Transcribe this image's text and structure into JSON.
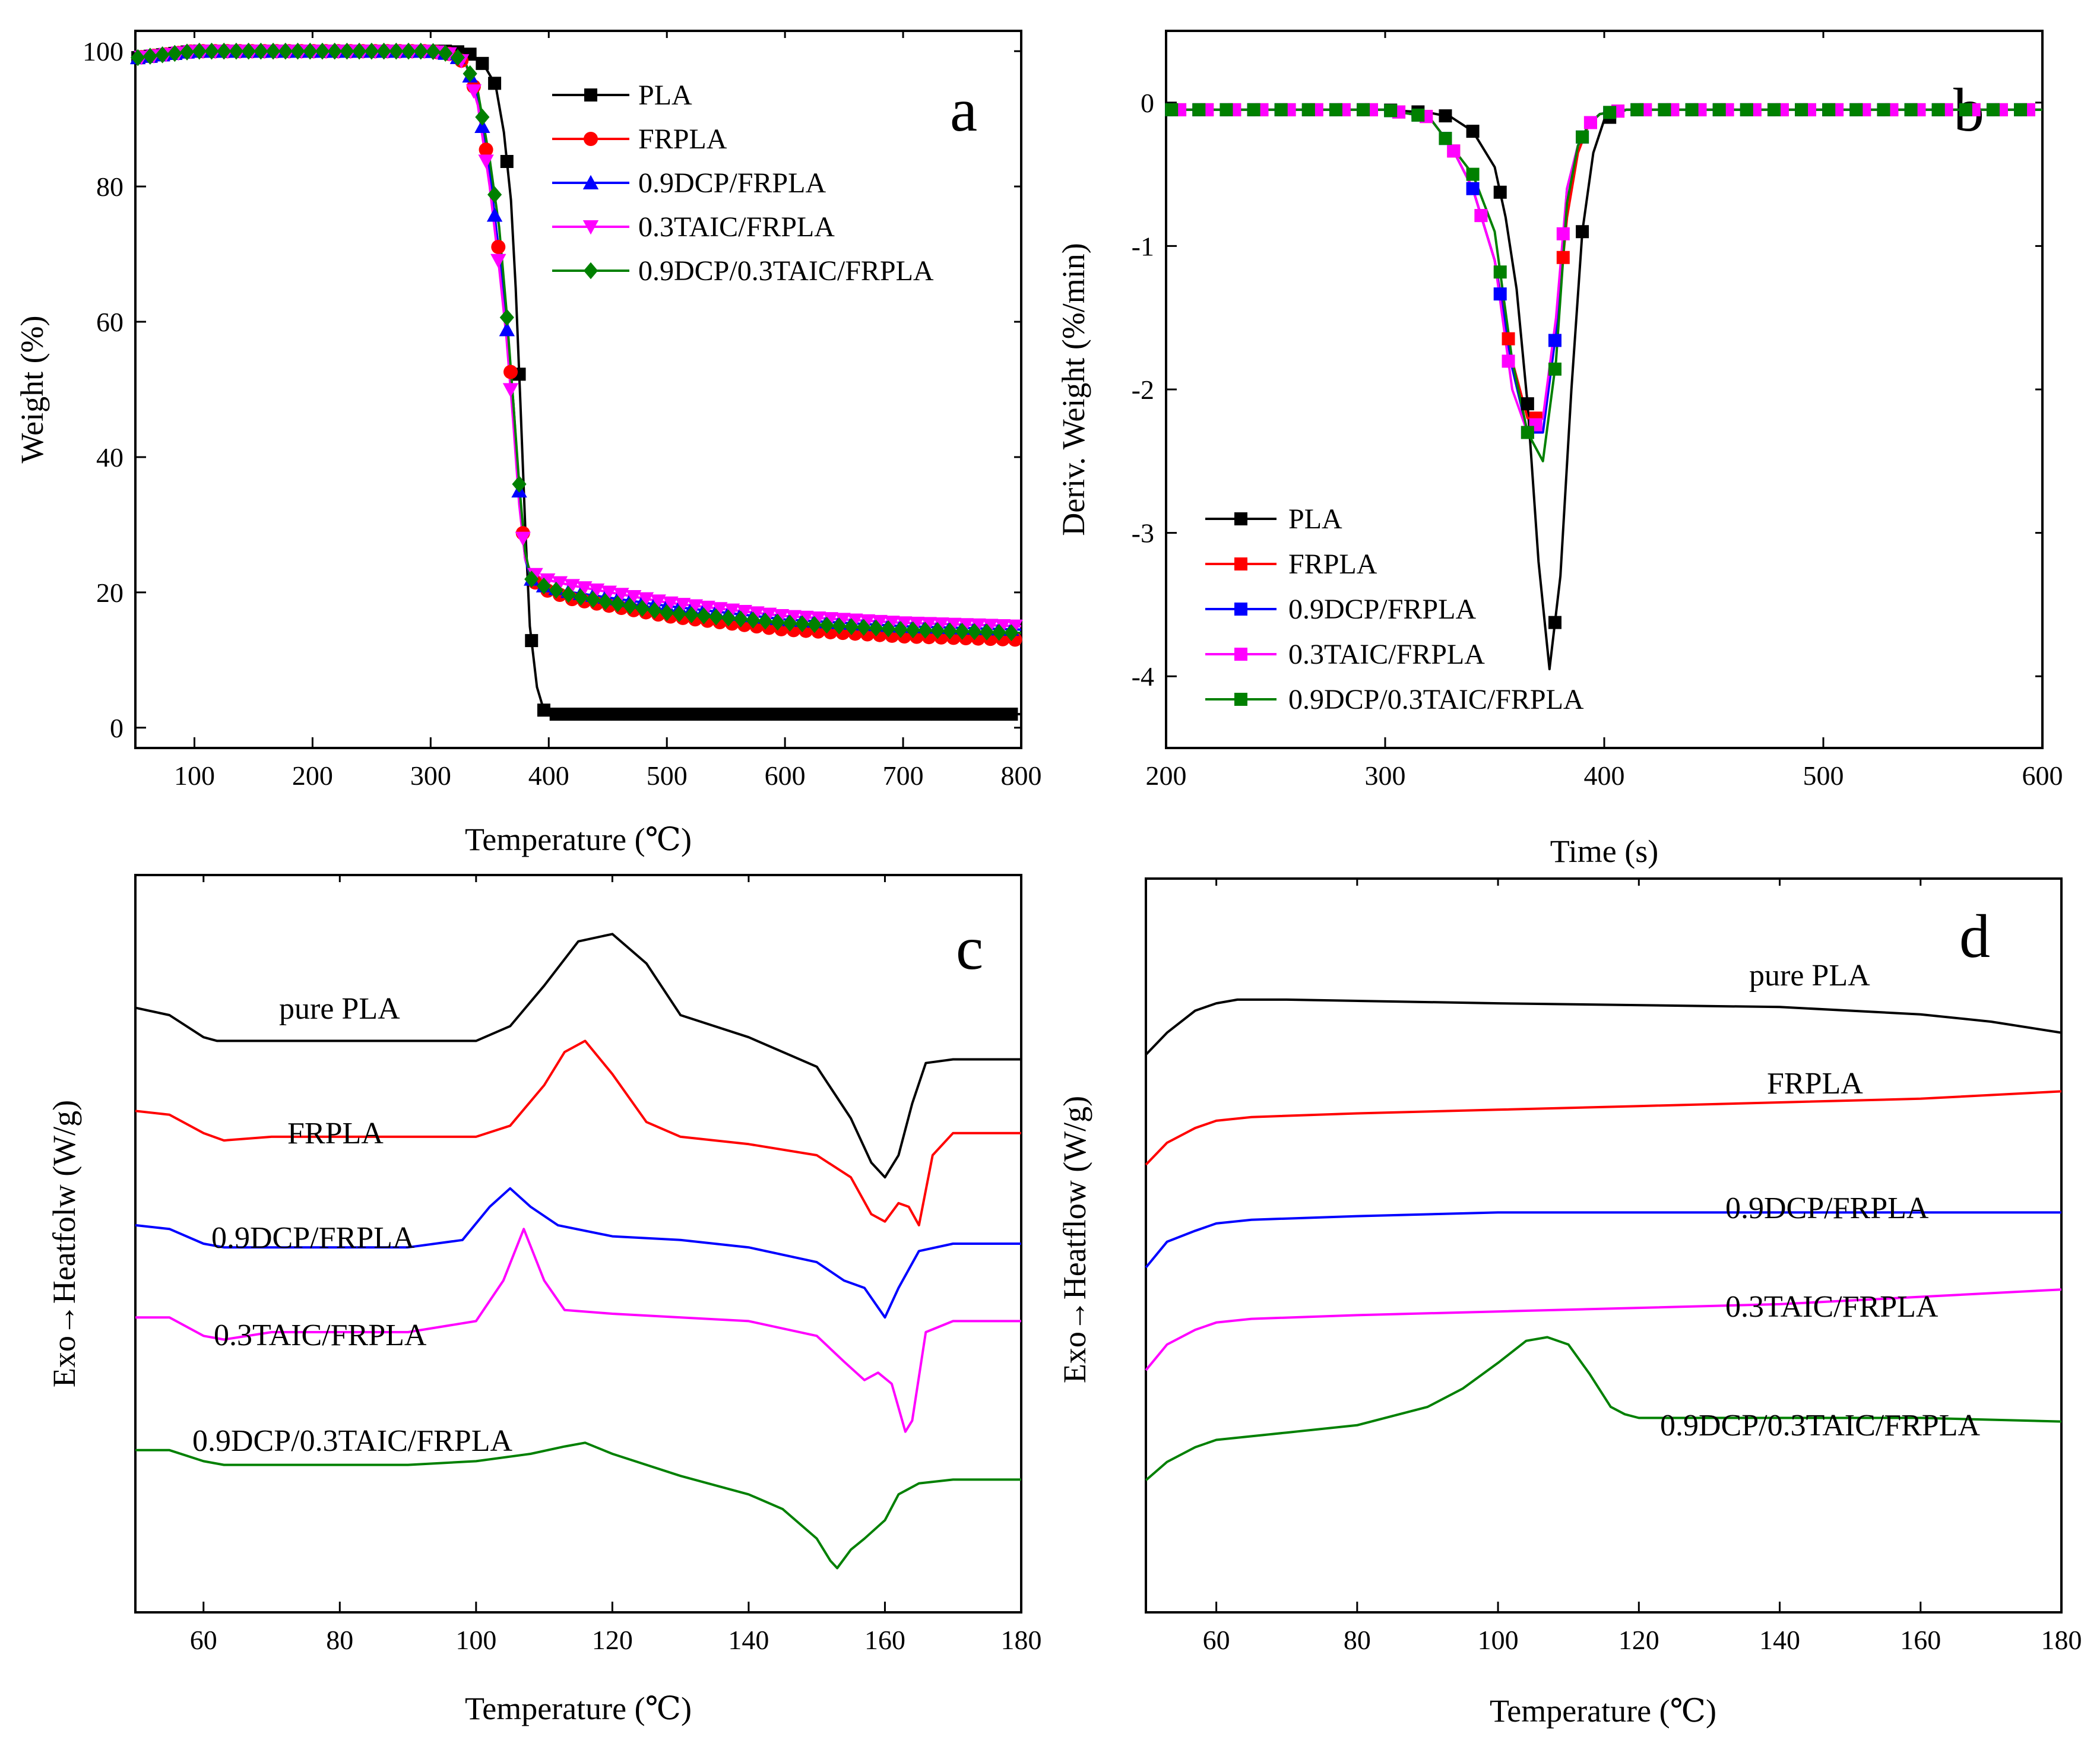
{
  "colors": {
    "PLA": "#000000",
    "FRPLA": "#ff0000",
    "0.9DCP/FRPLA": "#0000ff",
    "0.3TAIC/FRPLA": "#ff00ff",
    "0.9DCP/0.3TAIC/FRPLA": "#008000"
  },
  "chart_data": [
    {
      "panel": "a",
      "type": "line",
      "xlabel": "Temperature (℃)",
      "ylabel": "Weight (%)",
      "xlim": [
        50,
        800
      ],
      "ylim": [
        -3,
        103
      ],
      "xticks": [
        100,
        200,
        300,
        400,
        500,
        600,
        700,
        800
      ],
      "yticks": [
        0,
        20,
        40,
        60,
        80,
        100
      ],
      "legend_position": "top-right",
      "series": [
        {
          "name": "PLA",
          "color": "#000000",
          "marker": "square",
          "x": [
            50,
            100,
            200,
            300,
            320,
            335,
            345,
            355,
            362,
            368,
            372,
            376,
            380,
            384,
            390,
            396,
            402,
            410,
            500,
            600,
            700,
            800
          ],
          "y": [
            99,
            100,
            100,
            100,
            100,
            99.5,
            98,
            95,
            88,
            78,
            65,
            48,
            30,
            15,
            6,
            2.5,
            2,
            2,
            2,
            2,
            2,
            2
          ]
        },
        {
          "name": "FRPLA",
          "color": "#ff0000",
          "marker": "circle",
          "x": [
            50,
            100,
            200,
            300,
            320,
            330,
            340,
            350,
            358,
            364,
            370,
            375,
            380,
            385,
            395,
            420,
            500,
            600,
            700,
            800
          ],
          "y": [
            99,
            100,
            100,
            100,
            99.5,
            98,
            93,
            82,
            70,
            60,
            48,
            35,
            25,
            22,
            20.5,
            19,
            16.5,
            14.5,
            13.5,
            13
          ]
        },
        {
          "name": "0.9DCP/FRPLA",
          "color": "#0000ff",
          "marker": "triangle-up",
          "x": [
            50,
            100,
            200,
            300,
            320,
            330,
            340,
            350,
            358,
            364,
            370,
            375,
            380,
            385,
            395,
            420,
            500,
            600,
            700,
            800
          ],
          "y": [
            99,
            100,
            100,
            100,
            99.5,
            98,
            93,
            82,
            70,
            60,
            48,
            35,
            25,
            22,
            21,
            20,
            18,
            16,
            15,
            14.5
          ]
        },
        {
          "name": "0.3TAIC/FRPLA",
          "color": "#ff00ff",
          "marker": "triangle-down",
          "x": [
            50,
            100,
            200,
            300,
            320,
            330,
            340,
            350,
            358,
            364,
            370,
            375,
            380,
            385,
            395,
            420,
            500,
            600,
            700,
            800
          ],
          "y": [
            99,
            100,
            100,
            100,
            99.5,
            98,
            92,
            80,
            68,
            58,
            45,
            33,
            25,
            23,
            22,
            21,
            18.5,
            16.5,
            15.5,
            15
          ]
        },
        {
          "name": "0.9DCP/0.3TAIC/FRPLA",
          "color": "#008000",
          "marker": "diamond",
          "x": [
            50,
            100,
            200,
            300,
            320,
            330,
            340,
            350,
            358,
            364,
            370,
            375,
            380,
            385,
            395,
            420,
            500,
            600,
            700,
            800
          ],
          "y": [
            99,
            100,
            100,
            100,
            99.5,
            98,
            94,
            84,
            74,
            62,
            48,
            36,
            26,
            22,
            21,
            19.5,
            17,
            15.5,
            14.5,
            14
          ]
        }
      ]
    },
    {
      "panel": "b",
      "type": "line",
      "xlabel": "Time (s)",
      "ylabel": "Deriv. Weight (%/min)",
      "xlim": [
        200,
        600
      ],
      "ylim": [
        -4.5,
        0.5
      ],
      "xticks": [
        200,
        300,
        400,
        500,
        600
      ],
      "yticks": [
        0,
        -1,
        -2,
        -3,
        -4
      ],
      "legend_position": "bottom-left",
      "series": [
        {
          "name": "PLA",
          "color": "#000000",
          "x": [
            200,
            300,
            320,
            330,
            340,
            350,
            355,
            360,
            365,
            370,
            375,
            380,
            385,
            390,
            395,
            400,
            410,
            500,
            600
          ],
          "y": [
            -0.05,
            -0.05,
            -0.07,
            -0.1,
            -0.2,
            -0.45,
            -0.8,
            -1.3,
            -2.1,
            -3.2,
            -3.95,
            -3.3,
            -2.0,
            -0.9,
            -0.35,
            -0.12,
            -0.05,
            -0.05,
            -0.05
          ]
        },
        {
          "name": "FRPLA",
          "color": "#ff0000",
          "x": [
            200,
            300,
            320,
            330,
            340,
            350,
            358,
            365,
            372,
            378,
            383,
            388,
            393,
            398,
            410,
            500,
            600
          ],
          "y": [
            -0.05,
            -0.05,
            -0.1,
            -0.3,
            -0.6,
            -1.1,
            -1.8,
            -2.2,
            -2.2,
            -1.6,
            -0.8,
            -0.35,
            -0.15,
            -0.08,
            -0.05,
            -0.05,
            -0.05
          ]
        },
        {
          "name": "0.9DCP/FRPLA",
          "color": "#0000ff",
          "x": [
            200,
            300,
            320,
            330,
            340,
            350,
            358,
            365,
            372,
            378,
            383,
            388,
            393,
            398,
            410,
            500,
            600
          ],
          "y": [
            -0.05,
            -0.05,
            -0.1,
            -0.3,
            -0.6,
            -1.1,
            -1.85,
            -2.3,
            -2.3,
            -1.6,
            -0.6,
            -0.3,
            -0.15,
            -0.08,
            -0.05,
            -0.05,
            -0.05
          ]
        },
        {
          "name": "0.3TAIC/FRPLA",
          "color": "#ff00ff",
          "x": [
            200,
            300,
            320,
            330,
            340,
            350,
            358,
            365,
            372,
            378,
            383,
            388,
            393,
            398,
            410,
            500,
            600
          ],
          "y": [
            -0.05,
            -0.05,
            -0.1,
            -0.3,
            -0.6,
            -1.1,
            -2.0,
            -2.3,
            -2.2,
            -1.5,
            -0.6,
            -0.3,
            -0.15,
            -0.08,
            -0.05,
            -0.05,
            -0.05
          ]
        },
        {
          "name": "0.9DCP/0.3TAIC/FRPLA",
          "color": "#008000",
          "x": [
            200,
            300,
            320,
            330,
            340,
            350,
            358,
            365,
            372,
            378,
            383,
            388,
            393,
            398,
            410,
            500,
            600
          ],
          "y": [
            -0.05,
            -0.05,
            -0.1,
            -0.3,
            -0.5,
            -0.9,
            -1.8,
            -2.3,
            -2.5,
            -1.8,
            -0.7,
            -0.3,
            -0.15,
            -0.08,
            -0.05,
            -0.05,
            -0.05
          ]
        }
      ]
    },
    {
      "panel": "c",
      "type": "line",
      "xlabel": "Temperature (℃)",
      "ylabel": "Exo→Heatfolw (W/g)",
      "xlim": [
        50,
        180
      ],
      "ylim": [
        0,
        100
      ],
      "xticks": [
        60,
        80,
        100,
        120,
        140,
        160,
        180
      ],
      "yticks": [],
      "series": [
        {
          "name": "pure PLA",
          "color": "#000000",
          "x": [
            50,
            55,
            60,
            62,
            70,
            80,
            90,
            100,
            105,
            110,
            115,
            120,
            125,
            130,
            140,
            150,
            155,
            158,
            160,
            162,
            164,
            166,
            170,
            180
          ],
          "y": [
            82,
            81,
            78,
            77.5,
            77.5,
            77.5,
            77.5,
            77.5,
            79.5,
            85,
            91,
            92,
            88,
            81,
            78,
            74,
            67,
            61,
            59,
            62,
            69,
            74.5,
            75,
            75
          ]
        },
        {
          "name": "FRPLA",
          "color": "#ff0000",
          "x": [
            50,
            55,
            60,
            63,
            70,
            80,
            90,
            100,
            105,
            110,
            113,
            116,
            120,
            125,
            130,
            140,
            150,
            155,
            158,
            160,
            162,
            163.5,
            165,
            167,
            170,
            180
          ],
          "y": [
            68,
            67.5,
            65,
            64,
            64.5,
            64.5,
            64.5,
            64.5,
            66,
            71.5,
            76,
            77.5,
            73,
            66.5,
            64.5,
            63.5,
            62,
            59,
            54,
            53,
            55.5,
            55,
            52.5,
            62,
            65,
            65
          ]
        },
        {
          "name": "0.9DCP/FRPLA",
          "color": "#0000ff",
          "x": [
            50,
            55,
            60,
            63,
            70,
            80,
            90,
            98,
            102,
            105,
            108,
            112,
            120,
            130,
            140,
            150,
            154,
            157,
            160,
            162,
            165,
            170,
            180
          ],
          "y": [
            52.5,
            52,
            50,
            49.5,
            49.5,
            49.5,
            49.5,
            50.5,
            55,
            57.5,
            55,
            52.5,
            51,
            50.5,
            49.5,
            47.5,
            45,
            44,
            40,
            44,
            49,
            50,
            50
          ]
        },
        {
          "name": "0.3TAIC/FRPLA",
          "color": "#ff00ff",
          "x": [
            50,
            55,
            60,
            63,
            70,
            80,
            90,
            100,
            104,
            107,
            110,
            113,
            120,
            130,
            140,
            150,
            154,
            157,
            159,
            161,
            163,
            164,
            166,
            170,
            180
          ],
          "y": [
            40,
            40,
            37.5,
            37,
            38,
            38,
            38,
            39.5,
            45,
            52,
            45,
            41,
            40.5,
            40,
            39.5,
            37.5,
            34,
            31.5,
            32.5,
            31,
            24.5,
            26,
            38,
            39.5,
            39.5
          ]
        },
        {
          "name": "0.9DCP/0.3TAIC/FRPLA",
          "color": "#008000",
          "x": [
            50,
            55,
            60,
            63,
            70,
            80,
            90,
            100,
            108,
            113,
            116,
            120,
            130,
            140,
            145,
            150,
            152,
            153,
            155,
            157,
            160,
            162,
            165,
            170,
            180
          ],
          "y": [
            22,
            22,
            20.5,
            20,
            20,
            20,
            20,
            20.5,
            21.5,
            22.5,
            23,
            21.5,
            18.5,
            16,
            14,
            10,
            7,
            6,
            8.5,
            10,
            12.5,
            16,
            17.5,
            18,
            18
          ]
        }
      ]
    },
    {
      "panel": "d",
      "type": "line",
      "xlabel": "Temperature (℃)",
      "ylabel": "Exo→Heatflow (W/g)",
      "xlim": [
        50,
        180
      ],
      "ylim": [
        0,
        100
      ],
      "xticks": [
        60,
        80,
        100,
        120,
        140,
        160,
        180
      ],
      "yticks": [],
      "series": [
        {
          "name": "pure PLA",
          "color": "#000000",
          "x": [
            50,
            53,
            57,
            60,
            63,
            70,
            100,
            140,
            160,
            170,
            180
          ],
          "y": [
            76,
            79,
            82,
            83,
            83.5,
            83.5,
            83,
            82.5,
            81.5,
            80.5,
            79
          ]
        },
        {
          "name": "FRPLA",
          "color": "#ff0000",
          "x": [
            50,
            53,
            57,
            60,
            65,
            80,
            100,
            120,
            140,
            160,
            180
          ],
          "y": [
            61,
            64,
            66,
            67,
            67.5,
            68,
            68.5,
            69,
            69.5,
            70,
            71
          ]
        },
        {
          "name": "0.9DCP/FRPLA",
          "color": "#0000ff",
          "x": [
            50,
            53,
            57,
            60,
            65,
            80,
            100,
            120,
            140,
            160,
            180
          ],
          "y": [
            47,
            50.5,
            52,
            53,
            53.5,
            54,
            54.5,
            54.5,
            54.5,
            54.5,
            54.5
          ]
        },
        {
          "name": "0.3TAIC/FRPLA",
          "color": "#ff00ff",
          "x": [
            50,
            53,
            57,
            60,
            65,
            80,
            100,
            120,
            140,
            160,
            180
          ],
          "y": [
            33,
            36.5,
            38.5,
            39.5,
            40,
            40.5,
            41,
            41.5,
            42,
            43,
            44
          ]
        },
        {
          "name": "0.9DCP/0.3TAIC/FRPLA",
          "color": "#008000",
          "x": [
            50,
            53,
            57,
            60,
            70,
            80,
            90,
            95,
            100,
            104,
            107,
            110,
            113,
            116,
            118,
            120,
            130,
            140,
            150,
            160,
            180
          ],
          "y": [
            18,
            20.5,
            22.5,
            23.5,
            24.5,
            25.5,
            28,
            30.5,
            34,
            37,
            37.5,
            36.5,
            32.5,
            28,
            27,
            26.5,
            26.5,
            26.5,
            26.5,
            26.5,
            26
          ]
        }
      ]
    }
  ],
  "panels": {
    "a": {
      "letter": "a",
      "xlabel": "Temperature (℃)",
      "ylabel": "Weight (%)"
    },
    "b": {
      "letter": "b",
      "xlabel": "Time (s)",
      "ylabel": "Deriv. Weight (%/min)"
    },
    "c": {
      "letter": "c",
      "xlabel": "Temperature (℃)",
      "ylabel": "Exo→Heatfolw (W/g)"
    },
    "d": {
      "letter": "d",
      "xlabel": "Temperature (℃)",
      "ylabel": "Exo→Heatflow (W/g)"
    }
  },
  "legend": {
    "PLA": "PLA",
    "FRPLA": "FRPLA",
    "DCP": "0.9DCP/FRPLA",
    "TAIC": "0.3TAIC/FRPLA",
    "BOTH": "0.9DCP/0.3TAIC/FRPLA"
  },
  "curve_labels_c": [
    "pure PLA",
    "FRPLA",
    "0.9DCP/FRPLA",
    "0.3TAIC/FRPLA",
    "0.9DCP/0.3TAIC/FRPLA"
  ],
  "curve_labels_d": [
    "pure PLA",
    "FRPLA",
    "0.9DCP/FRPLA",
    "0.3TAIC/FRPLA",
    "0.9DCP/0.3TAIC/FRPLA"
  ]
}
